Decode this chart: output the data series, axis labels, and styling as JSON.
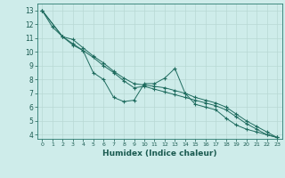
{
  "xlabel": "Humidex (Indice chaleur)",
  "background_color": "#ceecea",
  "grid_color": "#b8d8d4",
  "line_color": "#1e6b5e",
  "xlim": [
    -0.5,
    23.5
  ],
  "ylim": [
    3.7,
    13.5
  ],
  "yticks": [
    4,
    5,
    6,
    7,
    8,
    9,
    10,
    11,
    12,
    13
  ],
  "xticks": [
    0,
    1,
    2,
    3,
    4,
    5,
    6,
    7,
    8,
    9,
    10,
    11,
    12,
    13,
    14,
    15,
    16,
    17,
    18,
    19,
    20,
    21,
    22,
    23
  ],
  "series1_x": [
    0,
    1,
    2,
    3,
    4,
    5,
    6,
    7,
    8,
    9,
    10,
    11,
    12,
    13,
    14,
    15,
    16,
    17,
    18,
    19,
    20,
    21,
    22,
    23
  ],
  "series1_y": [
    13.0,
    11.8,
    11.1,
    10.5,
    10.1,
    8.5,
    8.0,
    6.7,
    6.4,
    6.5,
    7.7,
    7.7,
    8.1,
    8.8,
    7.0,
    6.2,
    6.0,
    5.8,
    5.2,
    4.7,
    4.4,
    4.2,
    4.0,
    3.8
  ],
  "series2_x": [
    0,
    2,
    3,
    4,
    5,
    6,
    7,
    8,
    9,
    10,
    11,
    12,
    13,
    14,
    15,
    16,
    17,
    18,
    19,
    20,
    21,
    22,
    23
  ],
  "series2_y": [
    13.0,
    11.1,
    10.9,
    10.3,
    9.7,
    9.2,
    8.6,
    8.1,
    7.7,
    7.6,
    7.5,
    7.4,
    7.2,
    7.0,
    6.7,
    6.5,
    6.3,
    6.0,
    5.5,
    5.0,
    4.6,
    4.2,
    3.8
  ],
  "series3_x": [
    0,
    2,
    3,
    4,
    5,
    6,
    7,
    8,
    9,
    10,
    11,
    12,
    13,
    14,
    15,
    16,
    17,
    18,
    19,
    20,
    21,
    22,
    23
  ],
  "series3_y": [
    13.0,
    11.1,
    10.6,
    10.1,
    9.6,
    9.0,
    8.5,
    7.9,
    7.4,
    7.5,
    7.3,
    7.1,
    6.9,
    6.7,
    6.5,
    6.3,
    6.1,
    5.8,
    5.3,
    4.8,
    4.4,
    4.0,
    3.8
  ]
}
